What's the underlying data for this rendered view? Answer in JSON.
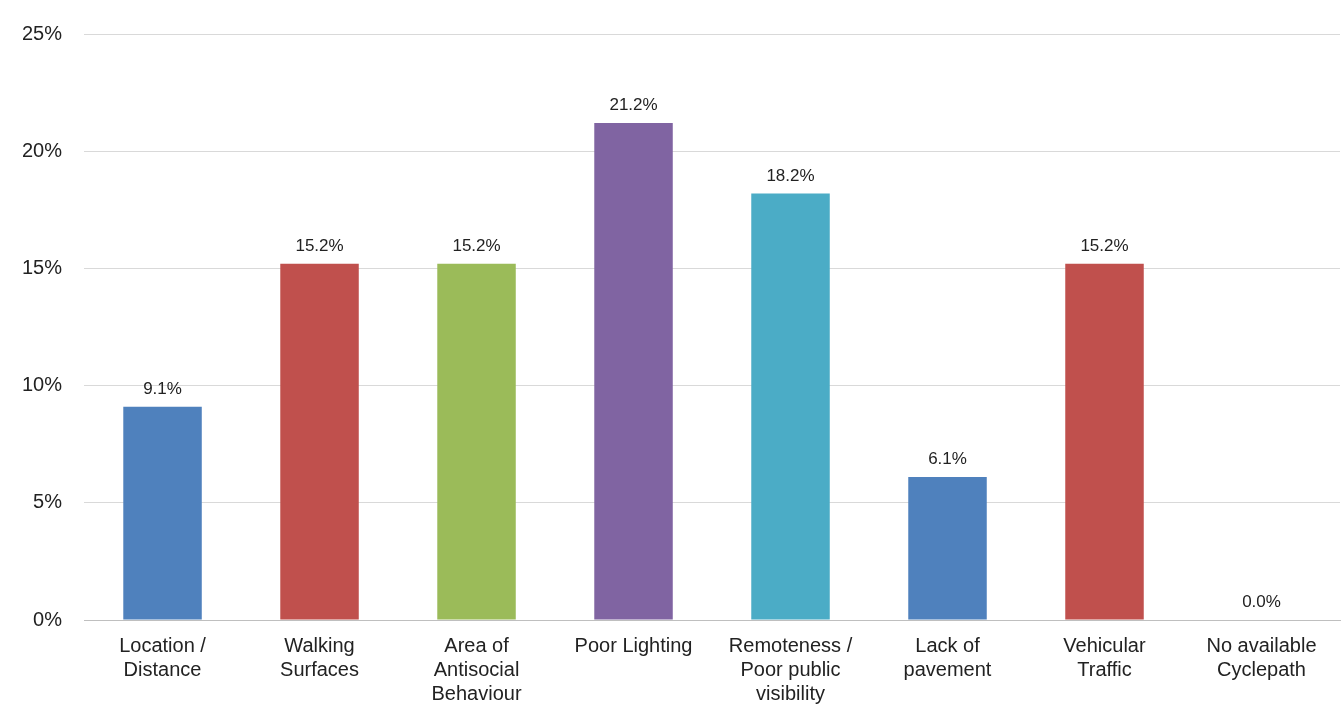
{
  "chart_data": {
    "type": "bar",
    "categories": [
      "Location / Distance",
      "Walking Surfaces",
      "Area of Antisocial Behaviour",
      "Poor Lighting",
      "Remoteness / Poor public visibility",
      "Lack of pavement",
      "Vehicular Traffic",
      "No available Cyclepath"
    ],
    "values": [
      9.1,
      15.2,
      15.2,
      21.2,
      18.2,
      6.1,
      15.2,
      0
    ],
    "value_labels": [
      "9.1%",
      "15.2%",
      "15.2%",
      "21.2%",
      "18.2%",
      "6.1%",
      "15.2%",
      "0.0%"
    ],
    "colors": [
      "#4f81bd",
      "#c0504d",
      "#9bbb59",
      "#8064a2",
      "#4bacc6",
      "#4f81bd",
      "#c0504d",
      "#4f81bd"
    ],
    "ylim": [
      0,
      25
    ],
    "yticks": [
      {
        "value": 0,
        "label": "0%"
      },
      {
        "value": 5,
        "label": "5%"
      },
      {
        "value": 10,
        "label": "10%"
      },
      {
        "value": 15,
        "label": "15%"
      },
      {
        "value": 20,
        "label": "20%"
      },
      {
        "value": 25,
        "label": "25%"
      }
    ],
    "grid": "y",
    "legend": false
  }
}
